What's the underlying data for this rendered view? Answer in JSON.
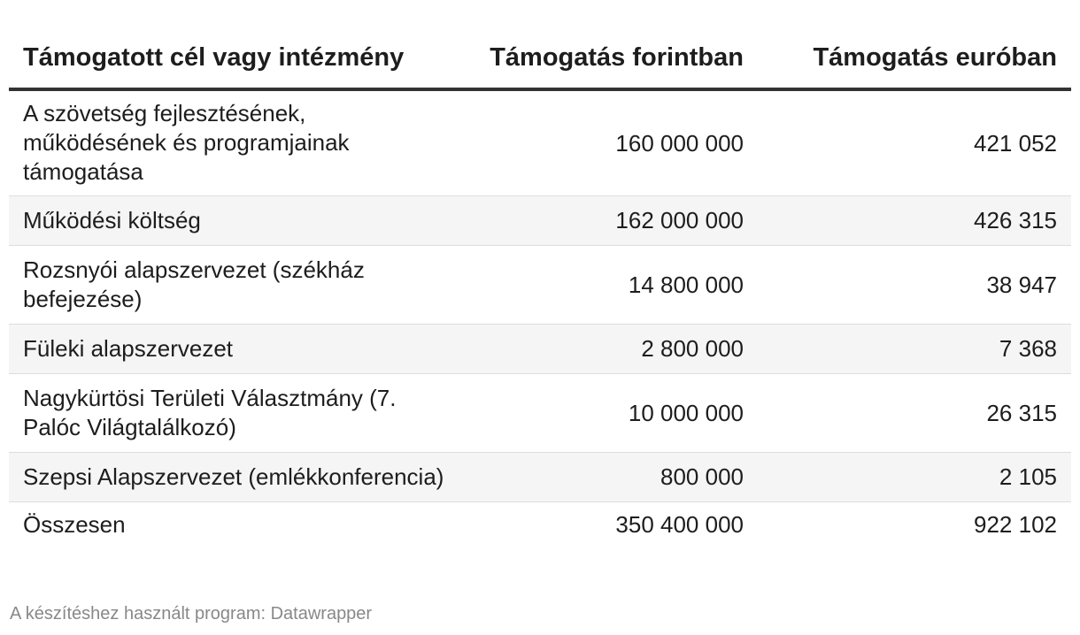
{
  "table": {
    "headers": [
      "Támogatott cél vagy intézmény",
      "Támogatás forintban",
      "Támogatás euróban"
    ],
    "rows": [
      [
        "A szövetség fejlesztésének, működésének és programjainak támogatása",
        "160 000 000",
        "421 052"
      ],
      [
        "Működési költség",
        "162 000 000",
        "426 315"
      ],
      [
        "Rozsnyói alapszervezet (székház befejezése)",
        "14 800 000",
        "38 947"
      ],
      [
        "Füleki alapszervezet",
        "2 800 000",
        "7 368"
      ],
      [
        "Nagykürtösi Területi Választmány (7. Palóc Világtalálkozó)",
        "10 000 000",
        "26 315"
      ],
      [
        "Szepsi Alapszervezet (emlékkonferencia)",
        "800 000",
        "2 105"
      ],
      [
        "Összesen",
        "350 400 000",
        "922 102"
      ]
    ]
  },
  "footer": {
    "credit": "A készítéshez használt program: Datawrapper"
  }
}
